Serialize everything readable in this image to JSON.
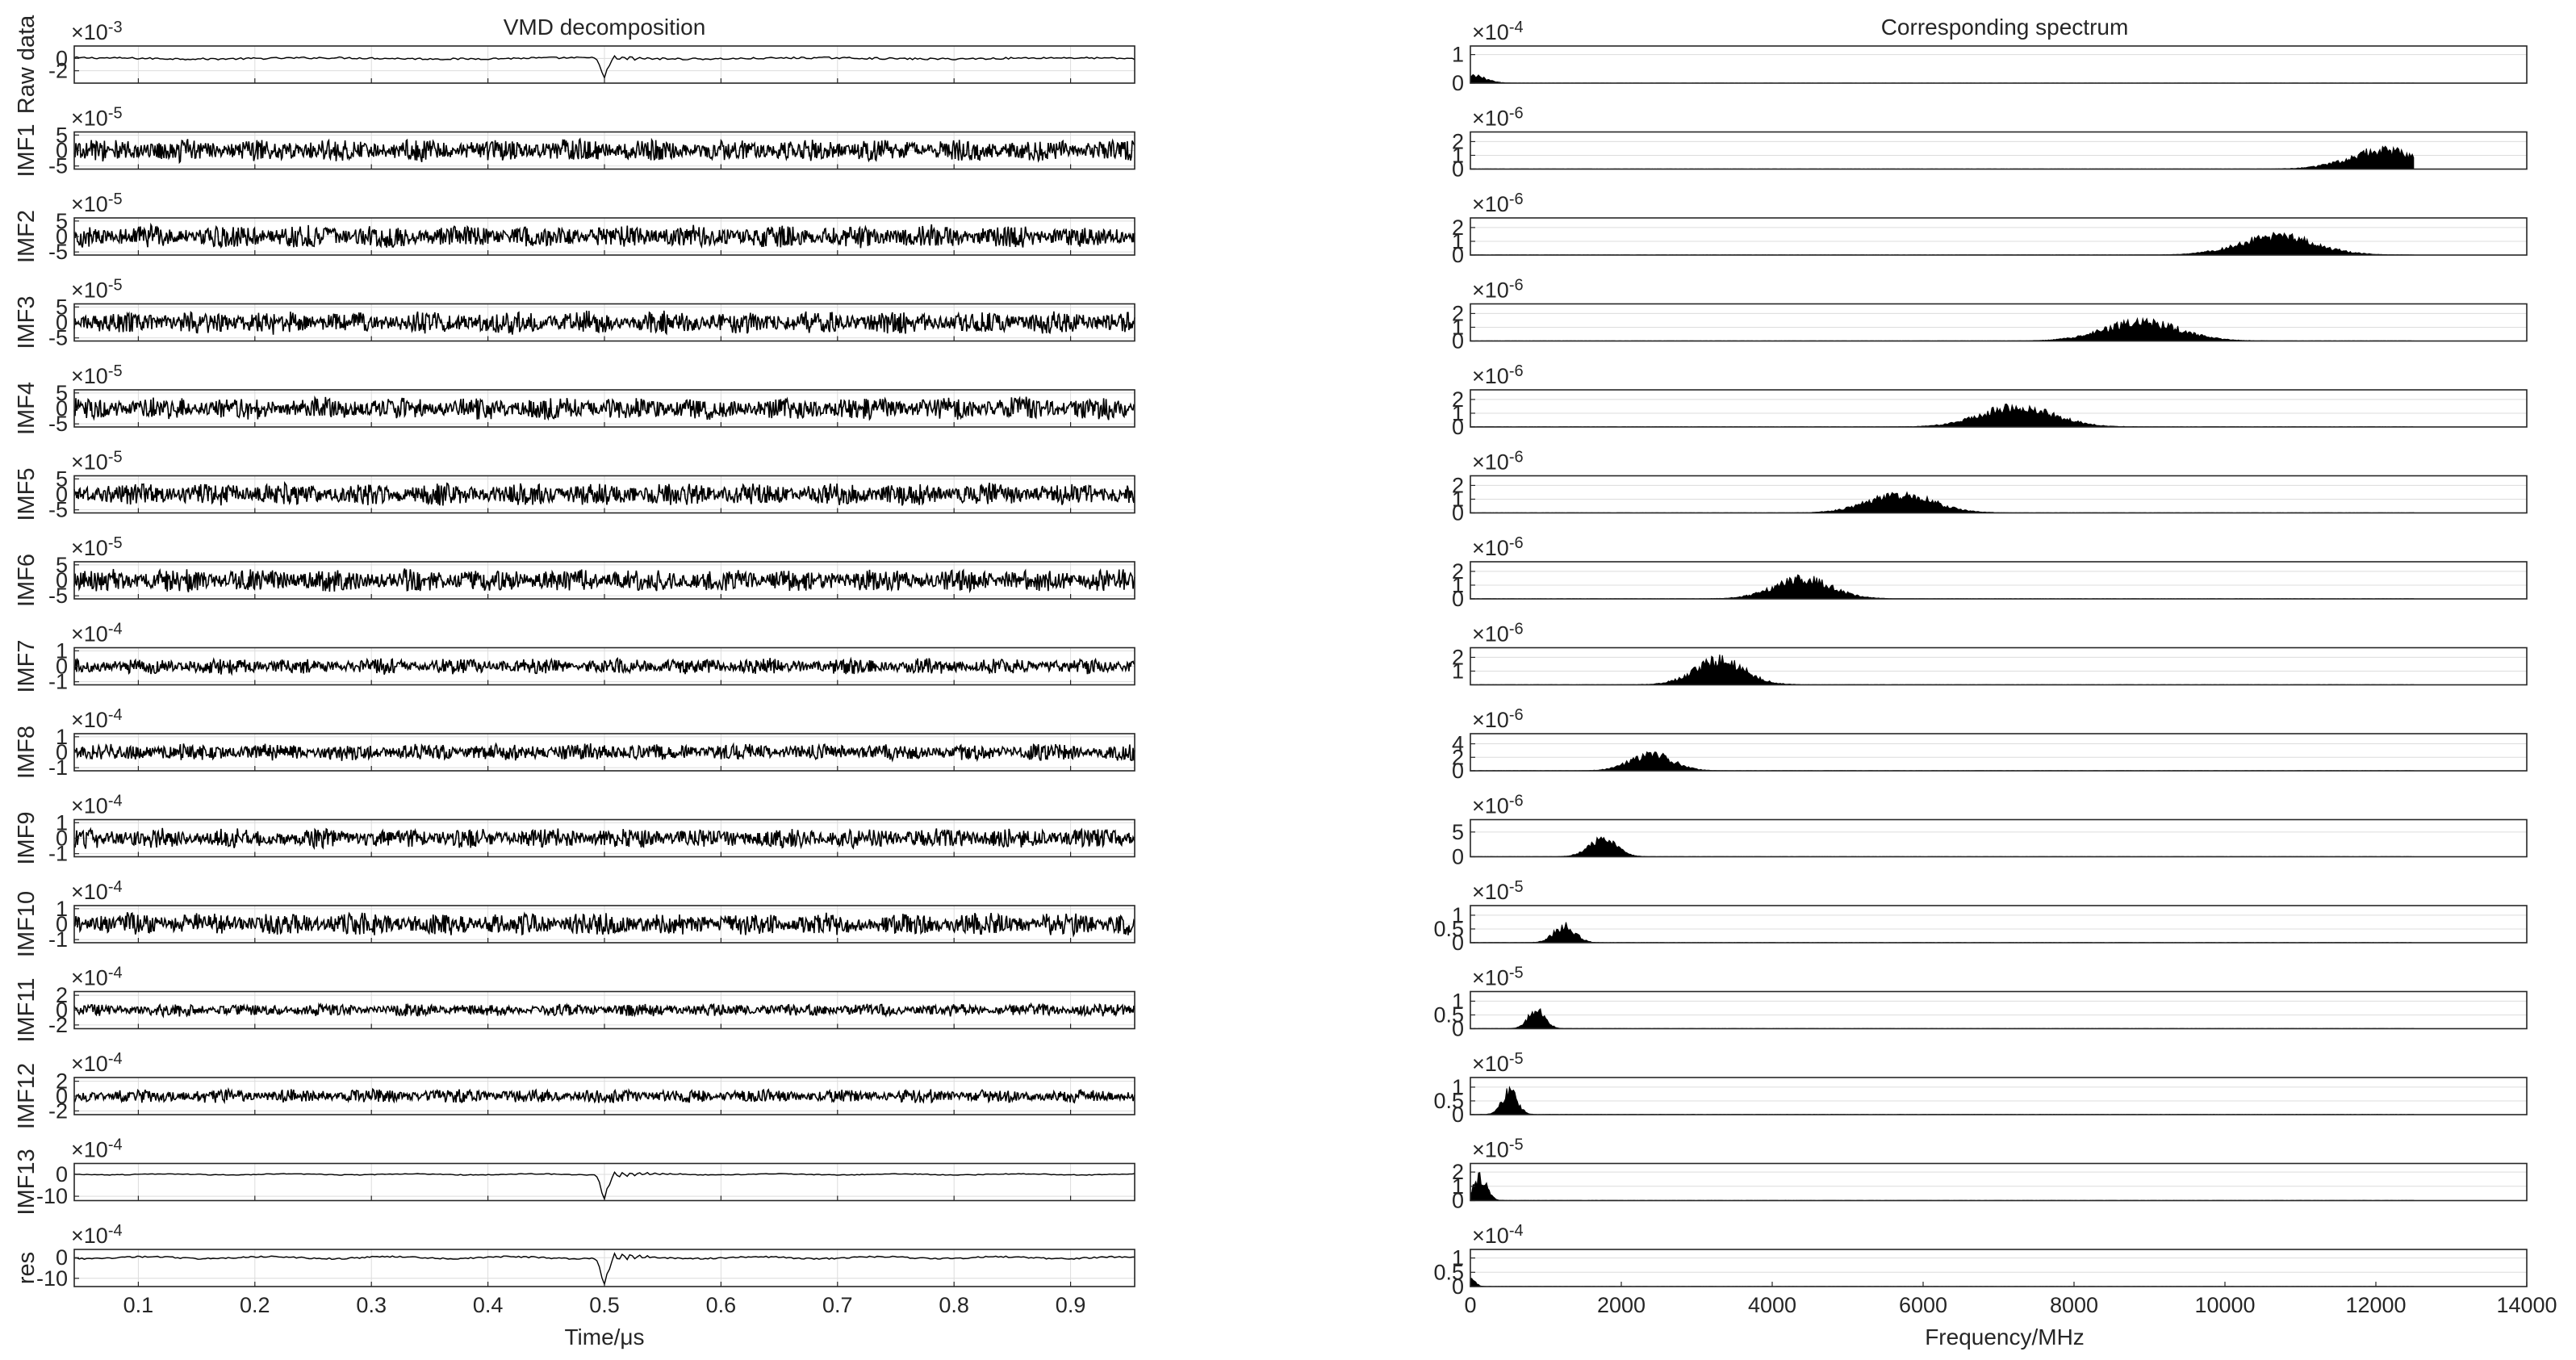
{
  "chart_data": [
    {
      "type": "line",
      "title": "VMD decomposition",
      "xlabel": "Time/μs",
      "xlim": [
        0.045,
        0.955
      ],
      "x_ticks": [
        0.1,
        0.2,
        0.3,
        0.4,
        0.5,
        0.6,
        0.7,
        0.8,
        0.9
      ],
      "x_tick_labels": [
        "0.1",
        "0.2",
        "0.3",
        "0.4",
        "0.5",
        "0.6",
        "0.7",
        "0.8",
        "0.9"
      ],
      "line_color": "#000000",
      "grid": true,
      "panels": [
        {
          "ylabel": "Raw data",
          "exponent": "-3",
          "ylim": [
            -4,
            2
          ],
          "y_ticks": [
            0,
            -2
          ],
          "y_tick_labels": [
            "0",
            "-2"
          ],
          "pattern": "raw",
          "amplitude": 0.3,
          "spike": {
            "x": 0.5,
            "depth": -3.2
          }
        },
        {
          "ylabel": "IMF1",
          "exponent": "-5",
          "ylim": [
            -6,
            6
          ],
          "y_ticks": [
            5,
            0,
            -5
          ],
          "y_tick_labels": [
            "5",
            "0",
            "-5"
          ],
          "pattern": "dense",
          "amplitude": 4
        },
        {
          "ylabel": "IMF2",
          "exponent": "-5",
          "ylim": [
            -6,
            6
          ],
          "y_ticks": [
            5,
            0,
            -5
          ],
          "y_tick_labels": [
            "5",
            "0",
            "-5"
          ],
          "pattern": "dense",
          "amplitude": 4
        },
        {
          "ylabel": "IMF3",
          "exponent": "-5",
          "ylim": [
            -6,
            6
          ],
          "y_ticks": [
            5,
            0,
            -5
          ],
          "y_tick_labels": [
            "5",
            "0",
            "-5"
          ],
          "pattern": "dense",
          "amplitude": 4
        },
        {
          "ylabel": "IMF4",
          "exponent": "-5",
          "ylim": [
            -6,
            6
          ],
          "y_ticks": [
            5,
            0,
            -5
          ],
          "y_tick_labels": [
            "5",
            "0",
            "-5"
          ],
          "pattern": "dense",
          "amplitude": 4
        },
        {
          "ylabel": "IMF5",
          "exponent": "-5",
          "ylim": [
            -6,
            6
          ],
          "y_ticks": [
            5,
            0,
            -5
          ],
          "y_tick_labels": [
            "5",
            "0",
            "-5"
          ],
          "pattern": "dense",
          "amplitude": 4
        },
        {
          "ylabel": "IMF6",
          "exponent": "-5",
          "ylim": [
            -6,
            6
          ],
          "y_ticks": [
            5,
            0,
            -5
          ],
          "y_tick_labels": [
            "5",
            "0",
            "-5"
          ],
          "pattern": "dense",
          "amplitude": 4
        },
        {
          "ylabel": "IMF7",
          "exponent": "-4",
          "ylim": [
            -1.2,
            1.2
          ],
          "y_ticks": [
            1,
            0,
            -1
          ],
          "y_tick_labels": [
            "1",
            "0",
            "-1"
          ],
          "pattern": "dense",
          "amplitude": 0.55
        },
        {
          "ylabel": "IMF8",
          "exponent": "-4",
          "ylim": [
            -1.2,
            1.2
          ],
          "y_ticks": [
            1,
            0,
            -1
          ],
          "y_tick_labels": [
            "1",
            "0",
            "-1"
          ],
          "pattern": "dense",
          "amplitude": 0.6
        },
        {
          "ylabel": "IMF9",
          "exponent": "-4",
          "ylim": [
            -1.2,
            1.2
          ],
          "y_ticks": [
            1,
            0,
            -1
          ],
          "y_tick_labels": [
            "1",
            "0",
            "-1"
          ],
          "pattern": "dense",
          "amplitude": 0.7
        },
        {
          "ylabel": "IMF10",
          "exponent": "-4",
          "ylim": [
            -1.2,
            1.2
          ],
          "y_ticks": [
            1,
            0,
            -1
          ],
          "y_tick_labels": [
            "1",
            "0",
            "-1"
          ],
          "pattern": "dense",
          "amplitude": 0.8
        },
        {
          "ylabel": "IMF11",
          "exponent": "-4",
          "ylim": [
            -2.5,
            2.5
          ],
          "y_ticks": [
            2,
            0,
            -2
          ],
          "y_tick_labels": [
            "2",
            "0",
            "-2"
          ],
          "pattern": "dense",
          "amplitude": 0.9
        },
        {
          "ylabel": "IMF12",
          "exponent": "-4",
          "ylim": [
            -2.5,
            2.5
          ],
          "y_ticks": [
            2,
            0,
            -2
          ],
          "y_tick_labels": [
            "2",
            "0",
            "-2"
          ],
          "pattern": "dense",
          "amplitude": 1.0
        },
        {
          "ylabel": "IMF13",
          "exponent": "-4",
          "ylim": [
            -12,
            5
          ],
          "y_ticks": [
            0,
            -10
          ],
          "y_tick_labels": [
            "0",
            "-10"
          ],
          "pattern": "smooth",
          "amplitude": 0.6,
          "spike": {
            "x": 0.5,
            "depth": -11
          }
        },
        {
          "ylabel": "res",
          "exponent": "-4",
          "ylim": [
            -14,
            4
          ],
          "y_ticks": [
            0,
            -10
          ],
          "y_tick_labels": [
            "0",
            "-10"
          ],
          "pattern": "smooth",
          "amplitude": 1.2,
          "spike": {
            "x": 0.5,
            "depth": -13
          }
        }
      ]
    },
    {
      "type": "area",
      "title": "Corresponding spectrum",
      "xlabel": "Frequency/MHz",
      "xlim": [
        0,
        14000
      ],
      "x_ticks": [
        0,
        2000,
        4000,
        6000,
        8000,
        10000,
        12000,
        14000
      ],
      "x_tick_labels": [
        "0",
        "2000",
        "4000",
        "6000",
        "8000",
        "10000",
        "12000",
        "14000"
      ],
      "data_extent": 12500,
      "fill_color": "#000000",
      "grid": true,
      "panels": [
        {
          "exponent": "-4",
          "ylim": [
            0,
            1.3
          ],
          "y_ticks": [
            1,
            0
          ],
          "y_tick_labels": [
            "1",
            "0"
          ],
          "peak_center": 0,
          "peak_width": 180,
          "peak_height": 0.35
        },
        {
          "exponent": "-6",
          "ylim": [
            0,
            2.7
          ],
          "y_ticks": [
            2,
            1,
            0
          ],
          "y_tick_labels": [
            "2",
            "1",
            "0"
          ],
          "peak_center": 12100,
          "peak_width": 450,
          "peak_height": 1.7
        },
        {
          "exponent": "-6",
          "ylim": [
            0,
            2.7
          ],
          "y_ticks": [
            2,
            1,
            0
          ],
          "y_tick_labels": [
            "2",
            "1",
            "0"
          ],
          "peak_center": 10700,
          "peak_width": 500,
          "peak_height": 1.7
        },
        {
          "exponent": "-6",
          "ylim": [
            0,
            2.7
          ],
          "y_ticks": [
            2,
            1,
            0
          ],
          "y_tick_labels": [
            "2",
            "1",
            "0"
          ],
          "peak_center": 8900,
          "peak_width": 500,
          "peak_height": 1.7
        },
        {
          "exponent": "-6",
          "ylim": [
            0,
            2.7
          ],
          "y_ticks": [
            2,
            1,
            0
          ],
          "y_tick_labels": [
            "2",
            "1",
            "0"
          ],
          "peak_center": 7250,
          "peak_width": 480,
          "peak_height": 1.8
        },
        {
          "exponent": "-6",
          "ylim": [
            0,
            2.7
          ],
          "y_ticks": [
            2,
            1,
            0
          ],
          "y_tick_labels": [
            "2",
            "1",
            "0"
          ],
          "peak_center": 5700,
          "peak_width": 430,
          "peak_height": 1.7
        },
        {
          "exponent": "-6",
          "ylim": [
            0,
            2.7
          ],
          "y_ticks": [
            2,
            1,
            0
          ],
          "y_tick_labels": [
            "2",
            "1",
            "0"
          ],
          "peak_center": 4400,
          "peak_width": 380,
          "peak_height": 1.8
        },
        {
          "exponent": "-6",
          "ylim": [
            0,
            2.7
          ],
          "y_ticks": [
            2,
            1
          ],
          "y_tick_labels": [
            "2",
            "1"
          ],
          "peak_center": 3300,
          "peak_width": 330,
          "peak_height": 2.2
        },
        {
          "exponent": "-6",
          "ylim": [
            0,
            5.5
          ],
          "y_ticks": [
            4,
            2,
            0
          ],
          "y_tick_labels": [
            "4",
            "2",
            "0"
          ],
          "peak_center": 2400,
          "peak_width": 280,
          "peak_height": 3.0
        },
        {
          "exponent": "-6",
          "ylim": [
            0,
            7.5
          ],
          "y_ticks": [
            5,
            0
          ],
          "y_tick_labels": [
            "5",
            "0"
          ],
          "peak_center": 1750,
          "peak_width": 180,
          "peak_height": 4.5
        },
        {
          "exponent": "-5",
          "ylim": [
            0,
            1.35
          ],
          "y_ticks": [
            1,
            0.5,
            0
          ],
          "y_tick_labels": [
            "1",
            "0.5",
            "0"
          ],
          "peak_center": 1250,
          "peak_width": 140,
          "peak_height": 0.75
        },
        {
          "exponent": "-5",
          "ylim": [
            0,
            1.35
          ],
          "y_ticks": [
            1,
            0.5,
            0
          ],
          "y_tick_labels": [
            "1",
            "0.5",
            "0"
          ],
          "peak_center": 880,
          "peak_width": 110,
          "peak_height": 0.85
        },
        {
          "exponent": "-5",
          "ylim": [
            0,
            1.35
          ],
          "y_ticks": [
            1,
            0.5,
            0
          ],
          "y_tick_labels": [
            "1",
            "0.5",
            "0"
          ],
          "peak_center": 520,
          "peak_width": 100,
          "peak_height": 1.05
        },
        {
          "exponent": "-5",
          "ylim": [
            0,
            2.6
          ],
          "y_ticks": [
            2,
            1,
            0
          ],
          "y_tick_labels": [
            "2",
            "1",
            "0"
          ],
          "peak_center": 130,
          "peak_width": 90,
          "peak_height": 2.0
        },
        {
          "exponent": "-4",
          "ylim": [
            0,
            1.3
          ],
          "y_ticks": [
            1,
            0.5,
            0
          ],
          "y_tick_labels": [
            "1",
            "0.5",
            "0"
          ],
          "peak_center": 0,
          "peak_width": 60,
          "peak_height": 0.4
        }
      ]
    }
  ]
}
